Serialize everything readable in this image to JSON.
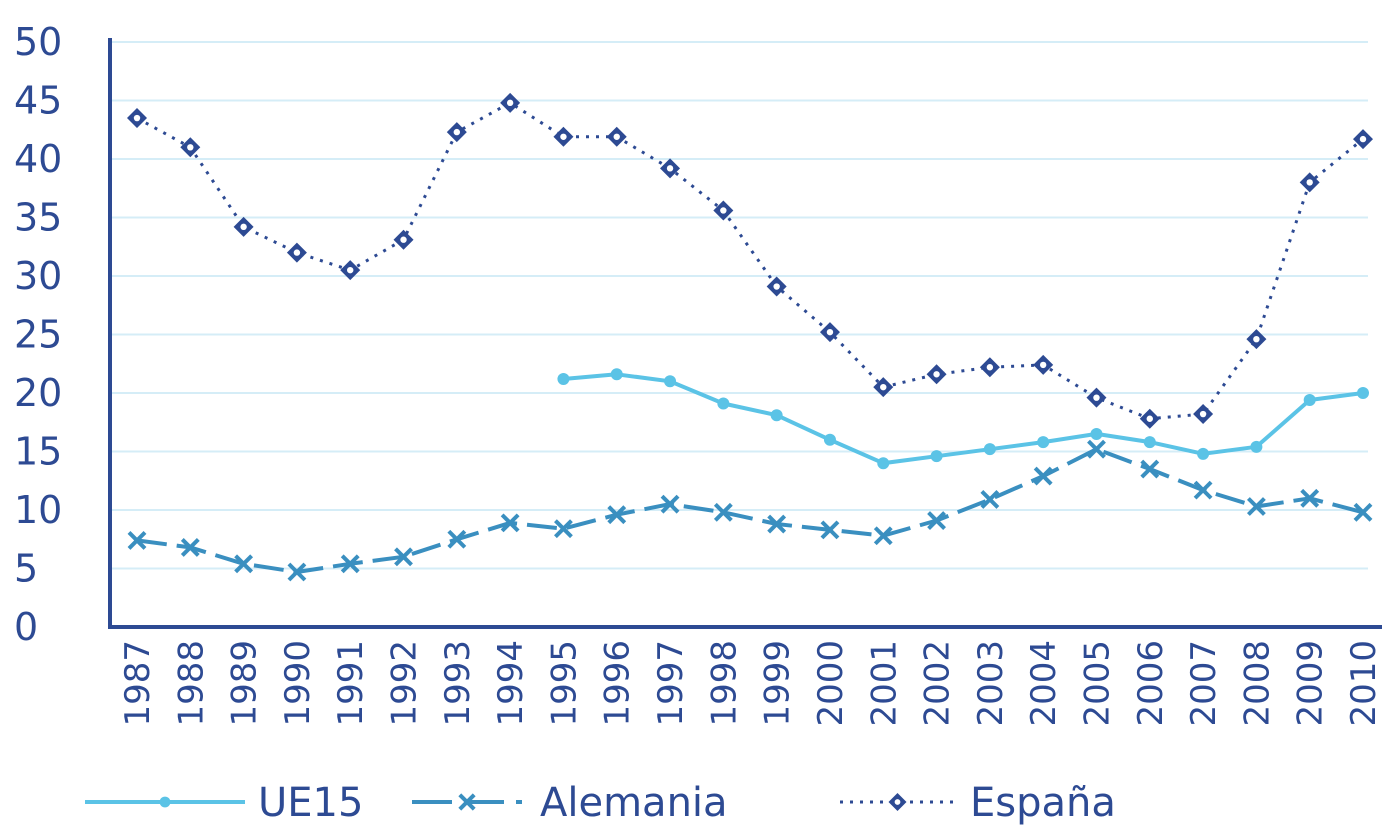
{
  "chart_data": {
    "type": "line",
    "title": "",
    "xlabel": "",
    "ylabel": "",
    "ylim": [
      0,
      50
    ],
    "yticks": [
      0,
      5,
      10,
      15,
      20,
      25,
      30,
      35,
      40,
      45,
      50
    ],
    "categories": [
      "1987",
      "1988",
      "1989",
      "1990",
      "1991",
      "1992",
      "1993",
      "1994",
      "1995",
      "1996",
      "1997",
      "1998",
      "1999",
      "2000",
      "2001",
      "2002",
      "2003",
      "2004",
      "2005",
      "2006",
      "2007",
      "2008",
      "2009",
      "2010"
    ],
    "grid": true,
    "legend": "bottom",
    "series": [
      {
        "name": "UE15",
        "color": "#5bc3e6",
        "style": "solid",
        "marker": "dot",
        "values": [
          null,
          null,
          null,
          null,
          null,
          null,
          null,
          null,
          21.2,
          21.6,
          21.0,
          19.1,
          18.1,
          16.0,
          14.0,
          14.6,
          15.2,
          15.8,
          16.5,
          15.8,
          14.8,
          15.4,
          19.4,
          20.0
        ]
      },
      {
        "name": "Alemania",
        "color": "#3a8fc0",
        "style": "dashed",
        "marker": "cross",
        "values": [
          7.4,
          6.8,
          5.4,
          4.7,
          5.4,
          6.0,
          7.5,
          8.9,
          8.4,
          9.6,
          10.5,
          9.8,
          8.8,
          8.3,
          7.8,
          9.1,
          10.9,
          12.9,
          15.2,
          13.5,
          11.7,
          10.3,
          11.0,
          9.8
        ]
      },
      {
        "name": "España",
        "color": "#2d4a93",
        "style": "dotted",
        "marker": "diamond",
        "values": [
          43.5,
          41.0,
          34.2,
          32.0,
          30.5,
          33.1,
          42.3,
          44.8,
          41.9,
          41.9,
          39.2,
          35.6,
          29.1,
          25.2,
          20.5,
          21.6,
          22.2,
          22.4,
          19.6,
          17.8,
          18.2,
          24.6,
          38.0,
          41.7
        ]
      }
    ]
  }
}
